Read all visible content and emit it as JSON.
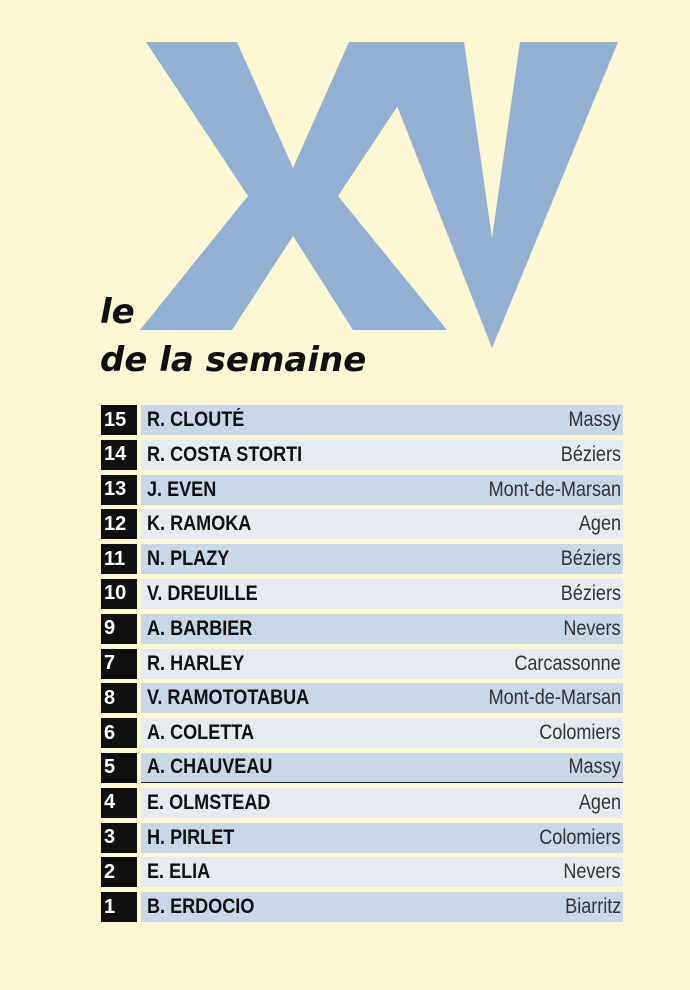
{
  "header": {
    "big_letters": "XV",
    "title_line1": "le",
    "title_line2": "de la semaine"
  },
  "colors": {
    "background": "#fdf8d4",
    "xv_letters": "#93b0d2",
    "number_box": "#111111",
    "row_shade_dark": "#c9d7e7",
    "row_shade_light": "#e6ebf1"
  },
  "roster": [
    {
      "number": "15",
      "name": "R. CLOUTÉ",
      "club": "Massy"
    },
    {
      "number": "14",
      "name": "R. COSTA STORTI",
      "club": "Béziers"
    },
    {
      "number": "13",
      "name": "J. EVEN",
      "club": "Mont-de-Marsan"
    },
    {
      "number": "12",
      "name": "K. RAMOKA",
      "club": "Agen"
    },
    {
      "number": "11",
      "name": "N. PLAZY",
      "club": "Béziers"
    },
    {
      "number": "10",
      "name": "V. DREUILLE",
      "club": "Béziers"
    },
    {
      "number": "9",
      "name": "A. BARBIER",
      "club": "Nevers"
    },
    {
      "number": "7",
      "name": "R. HARLEY",
      "club": "Carcassonne"
    },
    {
      "number": "8",
      "name": "V. RAMOTOTABUA",
      "club": "Mont-de-Marsan"
    },
    {
      "number": "6",
      "name": "A. COLETTA",
      "club": "Colomiers"
    },
    {
      "number": "5",
      "name": "A. CHAUVEAU",
      "club": "Massy"
    },
    {
      "number": "4",
      "name": "E. OLMSTEAD",
      "club": "Agen"
    },
    {
      "number": "3",
      "name": "H. PIRLET",
      "club": "Colomiers"
    },
    {
      "number": "2",
      "name": "E. ELIA",
      "club": "Nevers"
    },
    {
      "number": "1",
      "name": "B. ERDOCIO",
      "club": "Biarritz"
    }
  ]
}
